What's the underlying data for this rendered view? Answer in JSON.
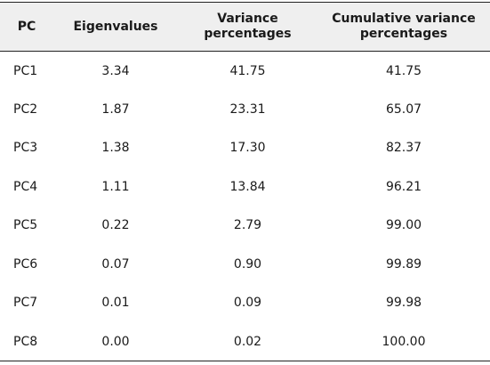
{
  "table": {
    "headers": {
      "pc": "PC",
      "eigenvalues": "Eigenvalues",
      "variance_line1": "Variance",
      "variance_line2": "percentages",
      "cumulative_line1": "Cumulative variance",
      "cumulative_line2": "percentages"
    },
    "rows": [
      {
        "pc": "PC1",
        "eigenvalue": "3.34",
        "variance": "41.75",
        "cumulative": "41.75"
      },
      {
        "pc": "PC2",
        "eigenvalue": "1.87",
        "variance": "23.31",
        "cumulative": "65.07"
      },
      {
        "pc": "PC3",
        "eigenvalue": "1.38",
        "variance": "17.30",
        "cumulative": "82.37"
      },
      {
        "pc": "PC4",
        "eigenvalue": "1.11",
        "variance": "13.84",
        "cumulative": "96.21"
      },
      {
        "pc": "PC5",
        "eigenvalue": "0.22",
        "variance": "2.79",
        "cumulative": "99.00"
      },
      {
        "pc": "PC6",
        "eigenvalue": "0.07",
        "variance": "0.90",
        "cumulative": "99.89"
      },
      {
        "pc": "PC7",
        "eigenvalue": "0.01",
        "variance": "0.09",
        "cumulative": "99.98"
      },
      {
        "pc": "PC8",
        "eigenvalue": "0.00",
        "variance": "0.02",
        "cumulative": "100.00"
      }
    ]
  }
}
